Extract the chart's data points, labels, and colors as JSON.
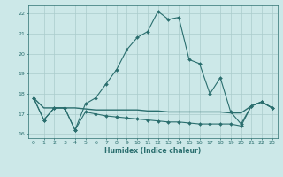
{
  "title": "",
  "xlabel": "Humidex (Indice chaleur)",
  "xlim": [
    -0.5,
    23.5
  ],
  "ylim": [
    15.8,
    22.4
  ],
  "yticks": [
    16,
    17,
    18,
    19,
    20,
    21,
    22
  ],
  "xticks": [
    0,
    1,
    2,
    3,
    4,
    5,
    6,
    7,
    8,
    9,
    10,
    11,
    12,
    13,
    14,
    15,
    16,
    17,
    18,
    19,
    20,
    21,
    22,
    23
  ],
  "bg_color": "#cce8e8",
  "grid_color": "#aacccc",
  "line_color": "#2a6e6e",
  "line1": [
    17.8,
    16.7,
    17.3,
    17.3,
    16.2,
    17.5,
    17.8,
    18.5,
    19.2,
    20.2,
    20.8,
    21.1,
    22.1,
    21.7,
    21.8,
    19.7,
    19.5,
    18.0,
    18.8,
    17.1,
    16.5,
    17.4,
    17.6,
    17.3
  ],
  "line2": [
    17.8,
    16.7,
    17.3,
    17.3,
    16.2,
    17.1,
    17.0,
    16.9,
    16.85,
    16.8,
    16.75,
    16.7,
    16.65,
    16.6,
    16.6,
    16.55,
    16.5,
    16.5,
    16.5,
    16.5,
    16.4,
    17.4,
    17.6,
    17.3
  ],
  "line3": [
    17.8,
    17.3,
    17.3,
    17.3,
    17.3,
    17.25,
    17.2,
    17.2,
    17.2,
    17.2,
    17.2,
    17.15,
    17.15,
    17.1,
    17.1,
    17.1,
    17.1,
    17.1,
    17.1,
    17.05,
    17.05,
    17.4,
    17.6,
    17.3
  ]
}
